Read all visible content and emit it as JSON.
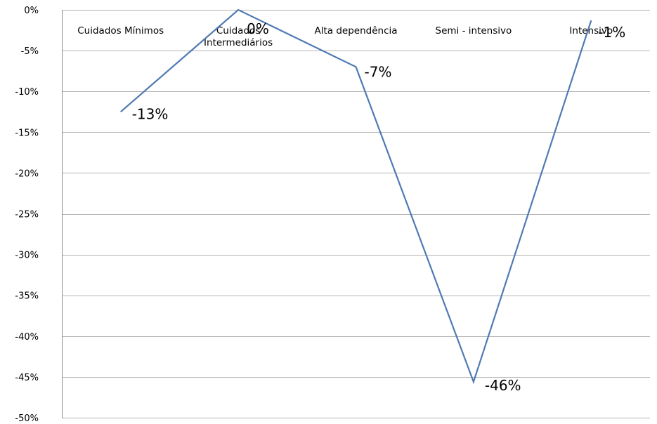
{
  "chart_data": {
    "type": "line",
    "title": "",
    "xlabel": "",
    "ylabel": "",
    "categories": [
      "Cuidados Mínimos",
      "Cuidados Intermediários",
      "Alta dependência",
      "Semi - intensivo",
      "Intensivo"
    ],
    "series": [
      {
        "values": [
          -12.5,
          0,
          -7,
          -45.6,
          -1.3
        ],
        "data_labels": [
          "-13%",
          "0%",
          "-7%",
          "-46%",
          "-1%"
        ]
      }
    ],
    "ylim": [
      -50,
      0
    ],
    "y_ticks": [
      0,
      -5,
      -10,
      -15,
      -20,
      -25,
      -30,
      -35,
      -40,
      -45,
      -50
    ],
    "y_tick_labels": [
      "0%",
      "-5%",
      "-10%",
      "-15%",
      "-20%",
      "-25%",
      "-30%",
      "-35%",
      "-40%",
      "-45%",
      "-50%"
    ],
    "grid": true,
    "legend": "none",
    "x_label_position": "top",
    "colors": {
      "line": "#4f7ab3",
      "grid": "#b3b3b3",
      "axis": "#8c8c8c"
    }
  }
}
